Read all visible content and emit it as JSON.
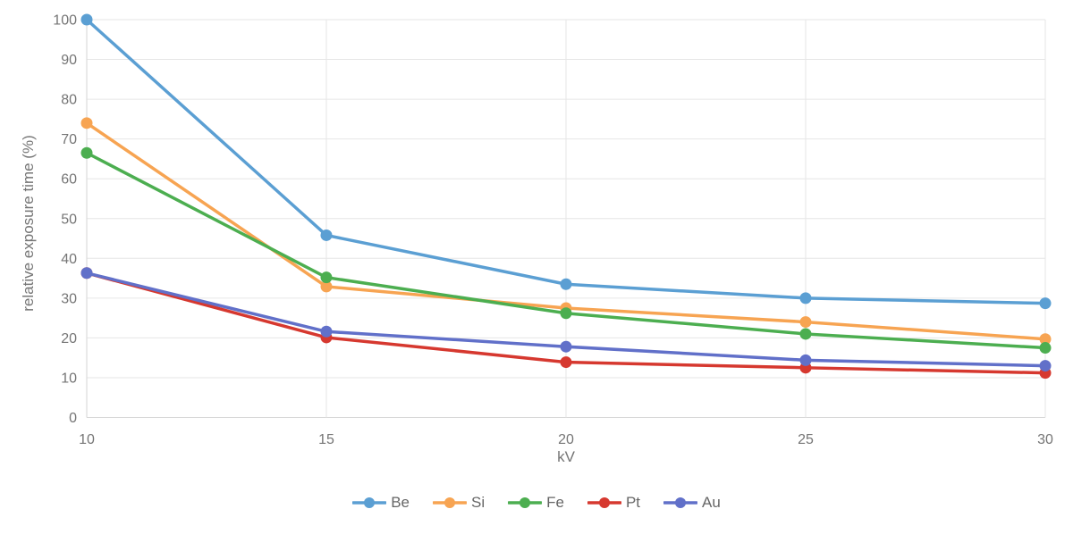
{
  "chart_data": {
    "type": "line",
    "title": "",
    "xlabel": "kV",
    "ylabel": "relative exposure time (%)",
    "x": [
      10,
      15,
      20,
      25,
      30
    ],
    "xlim": [
      10,
      30
    ],
    "ylim": [
      0,
      100
    ],
    "xticks": [
      10,
      15,
      20,
      25,
      30
    ],
    "yticks": [
      0,
      10,
      20,
      30,
      40,
      50,
      60,
      70,
      80,
      90,
      100
    ],
    "grid": true,
    "legend_position": "bottom",
    "series": [
      {
        "name": "Be",
        "color": "#5B9FD3",
        "values": [
          100,
          45.8,
          33.5,
          30,
          28.7
        ]
      },
      {
        "name": "Si",
        "color": "#F7A452",
        "values": [
          74,
          32.9,
          27.5,
          24,
          19.7
        ]
      },
      {
        "name": "Fe",
        "color": "#4CAE50",
        "values": [
          66.5,
          35.2,
          26.2,
          21,
          17.5
        ]
      },
      {
        "name": "Pt",
        "color": "#D6382F",
        "values": [
          36.3,
          20.1,
          13.9,
          12.5,
          11.2
        ]
      },
      {
        "name": "Au",
        "color": "#6170C9",
        "values": [
          36.3,
          21.6,
          17.8,
          14.4,
          13
        ]
      }
    ],
    "style": {
      "axis_text_color": "#757575",
      "legend_text_color": "#666666",
      "grid_color": "#e6e6e6",
      "axis_line_color": "#d6d6d6",
      "line_width": 3.5,
      "point_radius": 6.5
    }
  }
}
